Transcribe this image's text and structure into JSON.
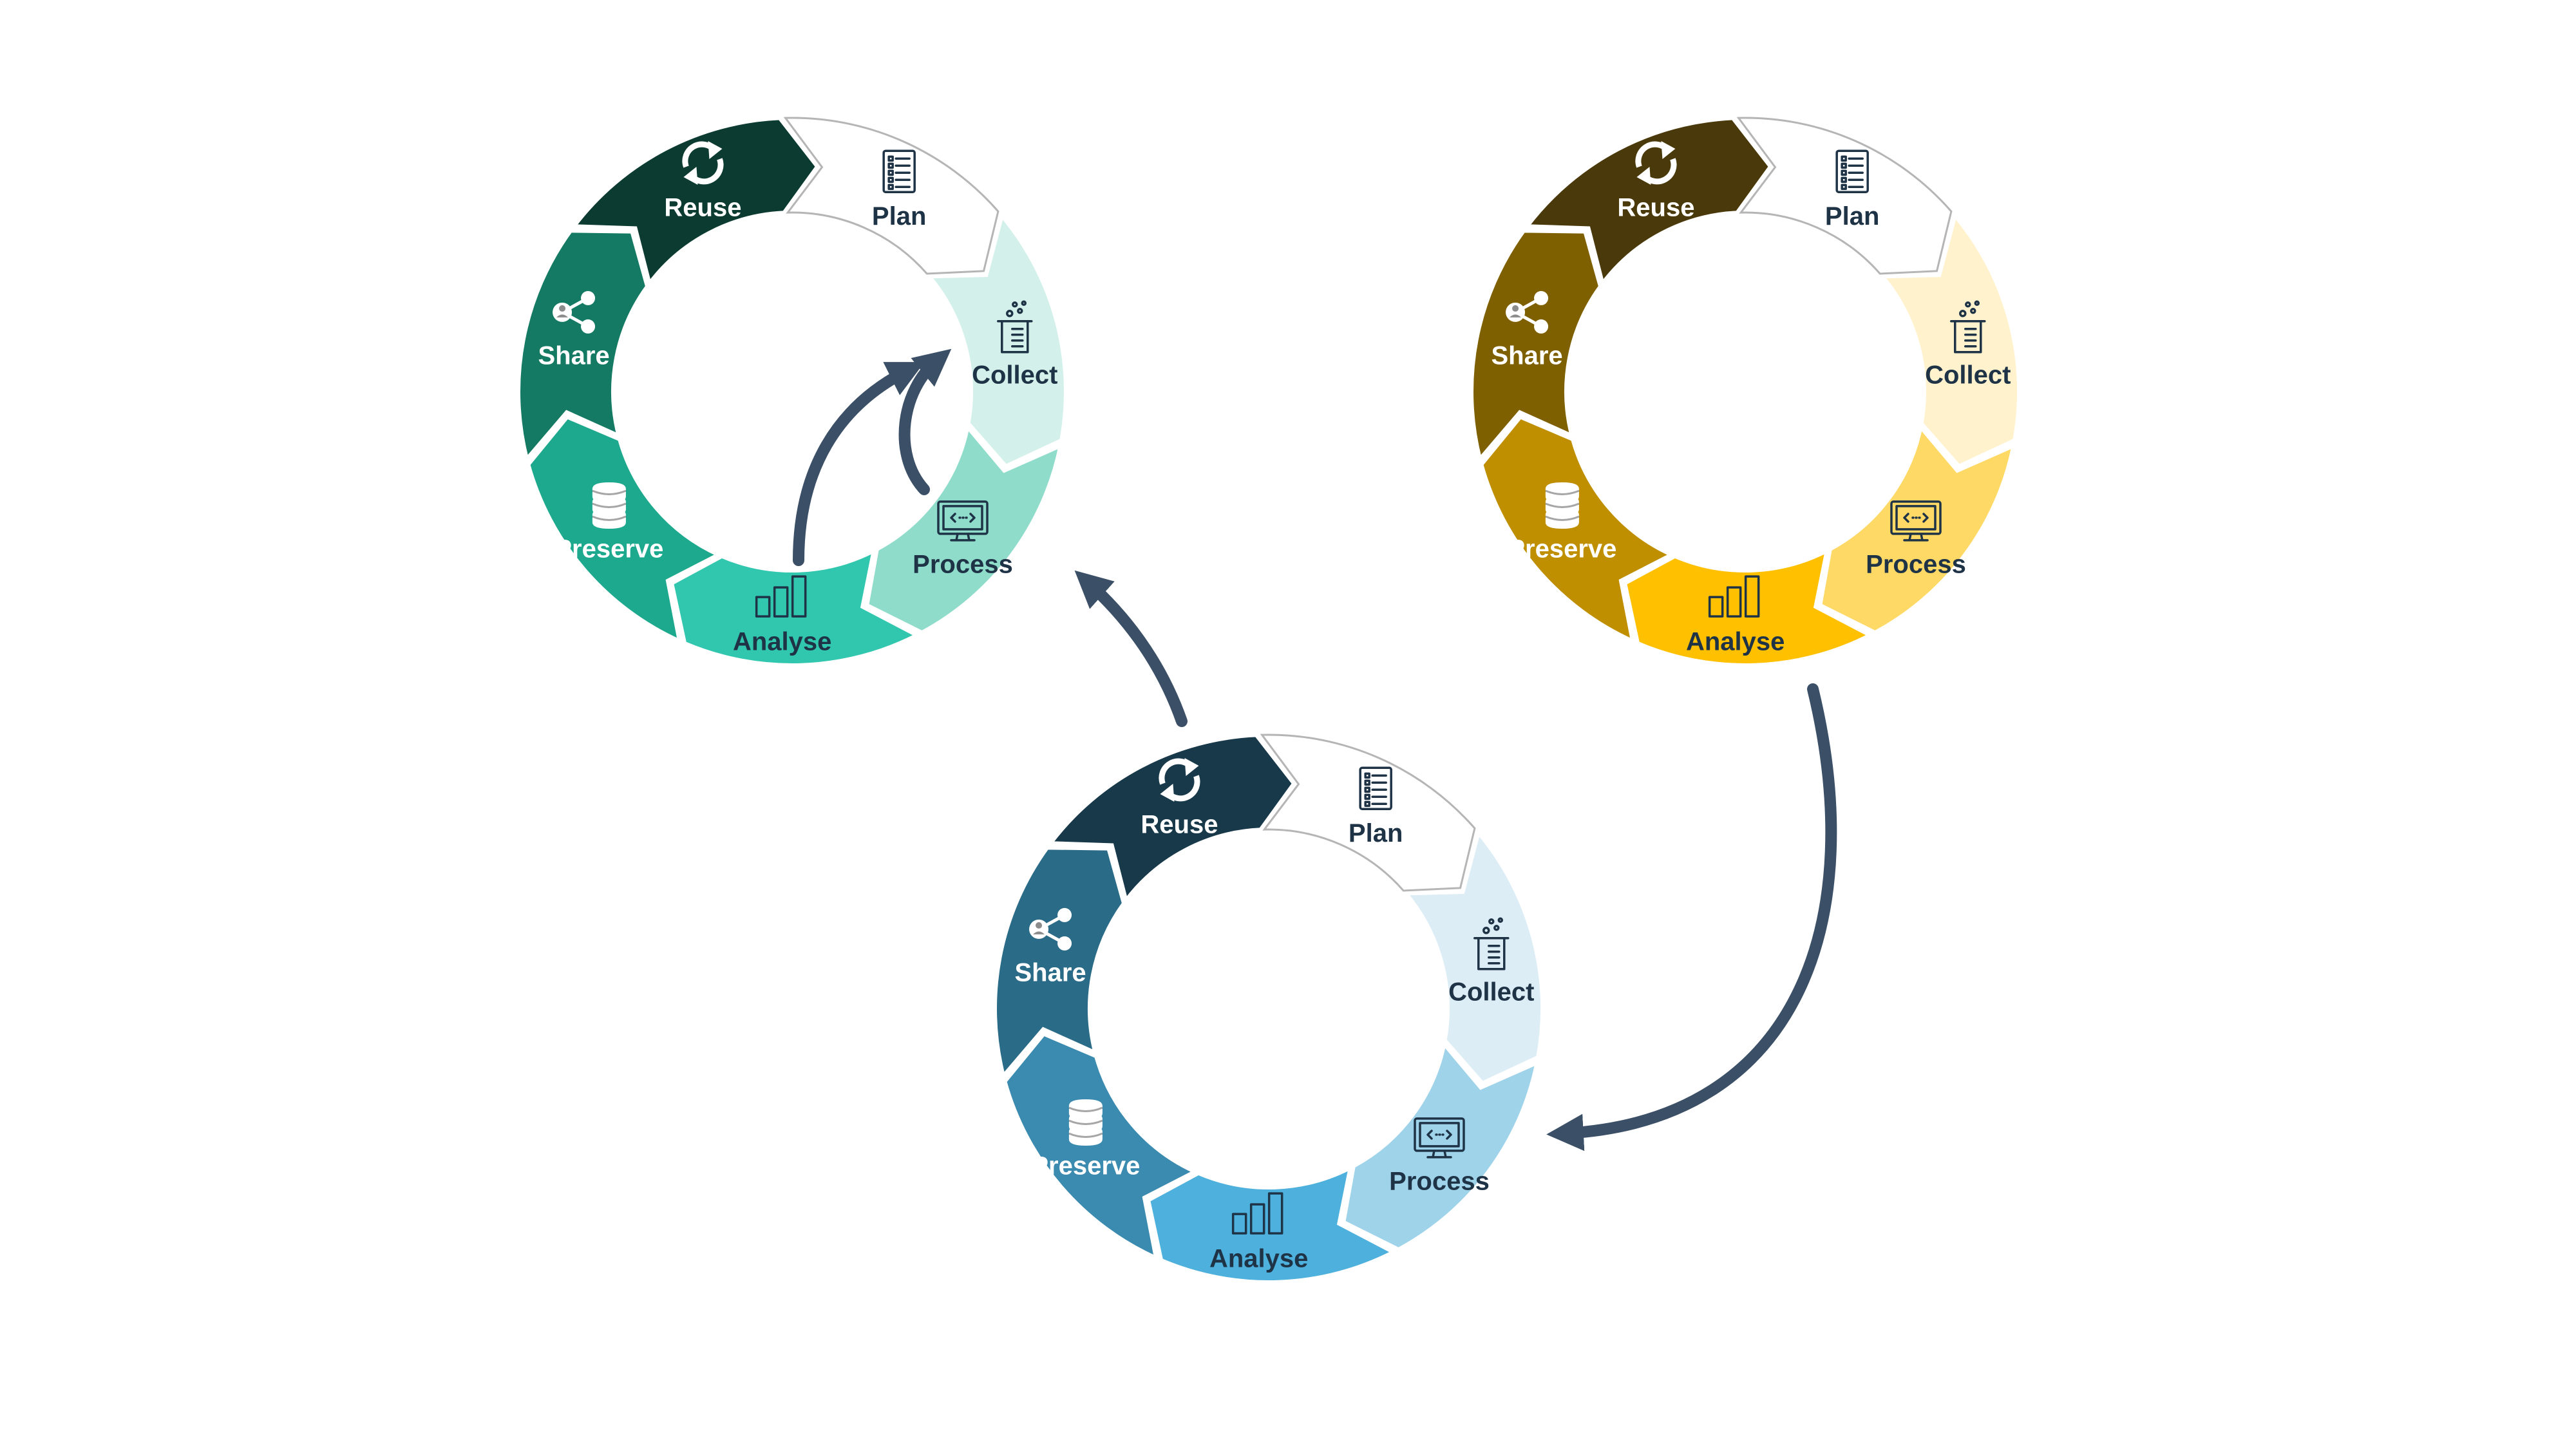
{
  "stage_labels": [
    "Plan",
    "Collect",
    "Process",
    "Analyse",
    "Preserve",
    "Share",
    "Reuse"
  ],
  "stage_icons": [
    "checklist-icon",
    "beaker-icon",
    "monitor-code-icon",
    "bar-chart-icon",
    "database-icon",
    "share-icon",
    "refresh-icon"
  ],
  "cycles": [
    {
      "id": "green",
      "colors": [
        "#ffffff",
        "#d3f1ea",
        "#8fdccb",
        "#31c7ae",
        "#1ca98d",
        "#147a63",
        "#0b3b31"
      ],
      "text_colors": [
        "#1f3347",
        "#1f3347",
        "#1f3347",
        "#1f3347",
        "#ffffff",
        "#ffffff",
        "#ffffff"
      ]
    },
    {
      "id": "gold",
      "colors": [
        "#ffffff",
        "#fff2cc",
        "#ffd966",
        "#ffc000",
        "#bf8f00",
        "#7f6000",
        "#4a3a0b"
      ],
      "text_colors": [
        "#1f3347",
        "#1f3347",
        "#1f3347",
        "#1f3347",
        "#ffffff",
        "#ffffff",
        "#ffffff"
      ]
    },
    {
      "id": "blue",
      "colors": [
        "#ffffff",
        "#dcedf6",
        "#9ed3ea",
        "#4eb0dc",
        "#3b8bb0",
        "#2a6b87",
        "#17394a"
      ],
      "text_colors": [
        "#1f3347",
        "#1f3347",
        "#1f3347",
        "#1f3347",
        "#ffffff",
        "#ffffff",
        "#ffffff"
      ]
    }
  ],
  "arrow_color": "#3b4f66"
}
